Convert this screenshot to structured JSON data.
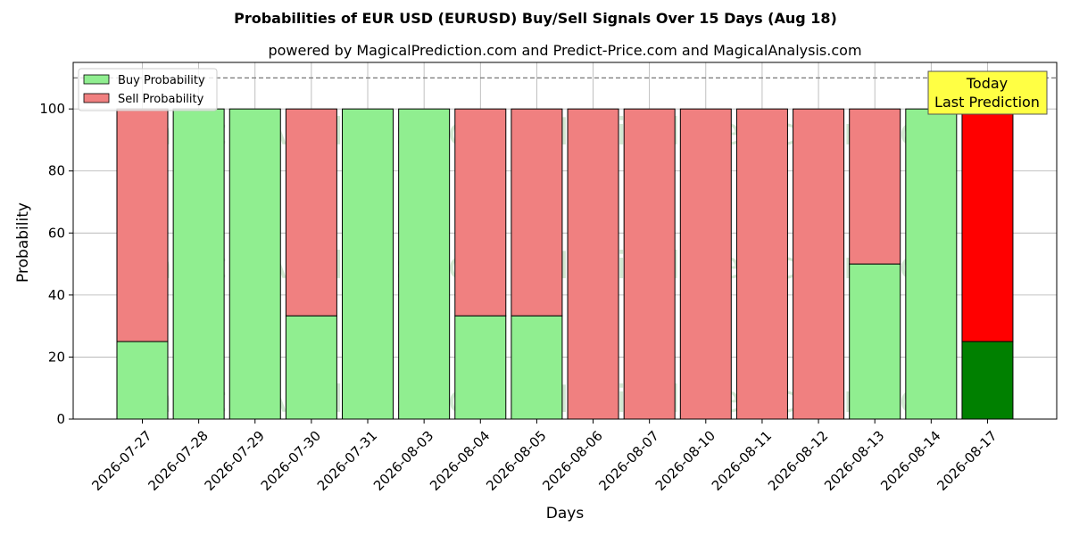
{
  "chart_data": {
    "type": "bar",
    "title": "Probabilities of EUR USD (EURUSD) Buy/Sell Signals Over 15 Days (Aug 18)",
    "subtitle": "powered by MagicalPrediction.com and Predict-Price.com and MagicalAnalysis.com",
    "xlabel": "Days",
    "ylabel": "Probability",
    "ylim": [
      0,
      115
    ],
    "yticks": [
      0,
      20,
      40,
      60,
      80,
      100
    ],
    "stacked": true,
    "grid": true,
    "legend_position": "top-left",
    "reference_line": 110,
    "categories": [
      "2026-07-27",
      "2026-07-28",
      "2026-07-29",
      "2026-07-30",
      "2026-07-31",
      "2026-08-03",
      "2026-08-04",
      "2026-08-05",
      "2026-08-06",
      "2026-08-07",
      "2026-08-10",
      "2026-08-11",
      "2026-08-12",
      "2026-08-13",
      "2026-08-14",
      "2026-08-17"
    ],
    "series": [
      {
        "name": "Buy Probability",
        "color": "#90ee90",
        "values": [
          25,
          100,
          100,
          33.3,
          100,
          100,
          33.3,
          33.3,
          0,
          0,
          0,
          0,
          0,
          50,
          100,
          25
        ]
      },
      {
        "name": "Sell Probability",
        "color": "#f08080",
        "values": [
          75,
          0,
          0,
          66.7,
          0,
          0,
          66.7,
          66.7,
          100,
          100,
          100,
          100,
          100,
          50,
          0,
          75
        ]
      }
    ],
    "highlight": {
      "index": 15,
      "buy_color": "#008000",
      "sell_color": "#ff0000",
      "label_line1": "Today",
      "label_line2": "Last Prediction",
      "label_bg": "#ffff44"
    },
    "watermark": "MagicalAnalysis.com    MagicalPrediction.com"
  }
}
